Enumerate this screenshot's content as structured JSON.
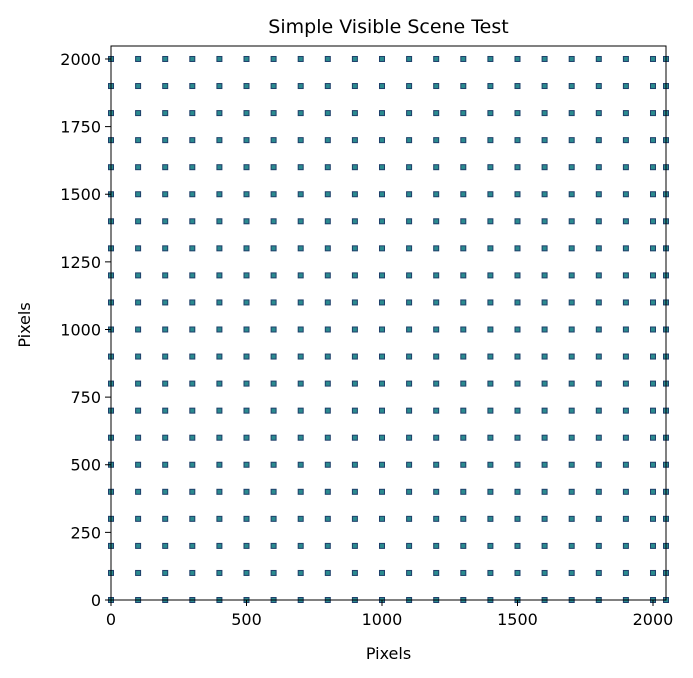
{
  "chart_data": {
    "type": "scatter",
    "title": "Simple Visible Scene Test",
    "xlabel": "Pixels",
    "ylabel": "Pixels",
    "xlim": [
      0,
      2048
    ],
    "ylim": [
      0,
      2048
    ],
    "xticks": [
      0,
      500,
      1000,
      1500,
      2000
    ],
    "yticks": [
      0,
      250,
      500,
      750,
      1000,
      1250,
      1500,
      1750,
      2000
    ],
    "xtick_labels": [
      "0",
      "500",
      "1000",
      "1500",
      "2000"
    ],
    "ytick_labels": [
      "0",
      "250",
      "500",
      "750",
      "1000",
      "1250",
      "1500",
      "1750",
      "2000"
    ],
    "grid": false,
    "points": {
      "x_start": 0,
      "x_step": 100,
      "x_end": 2000,
      "x_extra": [
        2048
      ],
      "y_start": 0,
      "y_step": 100,
      "y_end": 2000,
      "marker": "square"
    },
    "colors": {
      "marker_fill": "#2a8a8f",
      "marker_edge": "#1f3f6a",
      "axes": "#000000"
    }
  }
}
